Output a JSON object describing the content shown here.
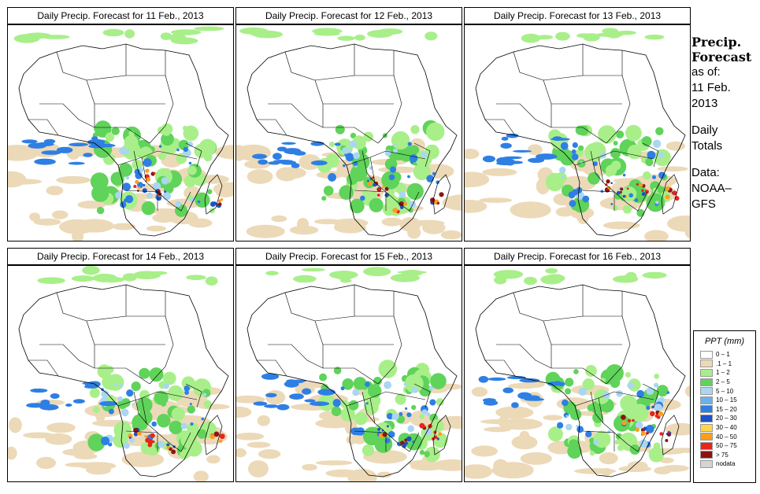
{
  "panels": [
    {
      "title": "Daily Precip. Forecast for  11 Feb., 2013"
    },
    {
      "title": "Daily Precip. Forecast for  12 Feb., 2013"
    },
    {
      "title": "Daily Precip. Forecast for  13 Feb., 2013"
    },
    {
      "title": "Daily Precip. Forecast for  14 Feb., 2013"
    },
    {
      "title": "Daily Precip. Forecast for  15 Feb., 2013"
    },
    {
      "title": "Daily Precip. Forecast for  16 Feb., 2013"
    }
  ],
  "side": {
    "title_line1": "Precip.",
    "title_line2": "Forecast",
    "asof_label": "as of:",
    "asof_line1": "11 Feb.",
    "asof_line2": "2013",
    "totals_line1": "Daily",
    "totals_line2": "Totals",
    "data_line1": "Data:",
    "data_line2": "NOAA–",
    "data_line3": "GFS"
  },
  "legend": {
    "title": "PPT (mm)",
    "items": [
      {
        "label": "0 – 1",
        "color": "#ffffff"
      },
      {
        "label": ".1 – 1",
        "color": "#ecd9b8"
      },
      {
        "label": "1 – 2",
        "color": "#a8ef8a"
      },
      {
        "label": "2 – 5",
        "color": "#5fd35a"
      },
      {
        "label": "5 – 10",
        "color": "#a9d6f2"
      },
      {
        "label": "10 – 15",
        "color": "#6cb2ea"
      },
      {
        "label": "15 – 20",
        "color": "#2e7fe3"
      },
      {
        "label": "20 – 30",
        "color": "#1a52c8"
      },
      {
        "label": "30 – 40",
        "color": "#ffd84a"
      },
      {
        "label": "40 – 50",
        "color": "#ff9d1e"
      },
      {
        "label": "50 – 75",
        "color": "#e8241b"
      },
      {
        "label": "> 75",
        "color": "#8e1414"
      },
      {
        "label": "nodata",
        "color": "#d4d4d4"
      }
    ]
  },
  "map_colors": {
    "tan": "#ecd9b8",
    "light_green": "#a8ef8a",
    "green": "#5fd35a",
    "light_blue": "#a9d6f2",
    "blue": "#2e7fe3",
    "dark_blue": "#1a52c8",
    "orange": "#ff9d1e",
    "red": "#e8241b",
    "dark_red": "#8e1414"
  }
}
